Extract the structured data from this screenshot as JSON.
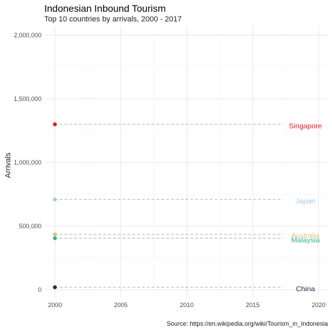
{
  "chart_data": {
    "type": "scatter",
    "title": "Indonesian Inbound Tourism",
    "subtitle": "Top 10 countries by arrivals, 2000 - 2017",
    "caption": "Source: https://en.wikipedia.org/wiki/Tourism_in_Indonesia",
    "xlabel": "",
    "ylabel": "Arrivals",
    "xlim": [
      1999.3,
      2020.7
    ],
    "ylim": [
      -60000,
      2070000
    ],
    "x_ticks": [
      2000,
      2005,
      2010,
      2015,
      2020
    ],
    "y_ticks": [
      0,
      500000,
      1000000,
      1500000,
      2000000
    ],
    "y_tick_labels": [
      "0",
      "500,000",
      "1,000,000",
      "1,500,000",
      "2,000,000"
    ],
    "grid": true,
    "legend": "none",
    "series": [
      {
        "name": "Singapore",
        "x": [
          2000
        ],
        "y": [
          1300000
        ],
        "label_x": 2019,
        "label_y": 1290000,
        "color": "#e41a1c"
      },
      {
        "name": "Japan",
        "x": [
          2000
        ],
        "y": [
          710000
        ],
        "label_x": 2019,
        "label_y": 700000,
        "color": "#a6c8e6"
      },
      {
        "name": "Australia",
        "x": [
          2000
        ],
        "y": [
          435000
        ],
        "label_x": 2019,
        "label_y": 430000,
        "color": "#d9c27a"
      },
      {
        "name": "Malaysia",
        "x": [
          2000
        ],
        "y": [
          405000
        ],
        "label_x": 2019,
        "label_y": 395000,
        "color": "#2bb58c"
      },
      {
        "name": "China",
        "x": [
          2000
        ],
        "y": [
          20000
        ],
        "label_x": 2019,
        "label_y": 10000,
        "color": "#1f2d4a"
      }
    ],
    "reference_lines_end_x": 2017.3
  }
}
